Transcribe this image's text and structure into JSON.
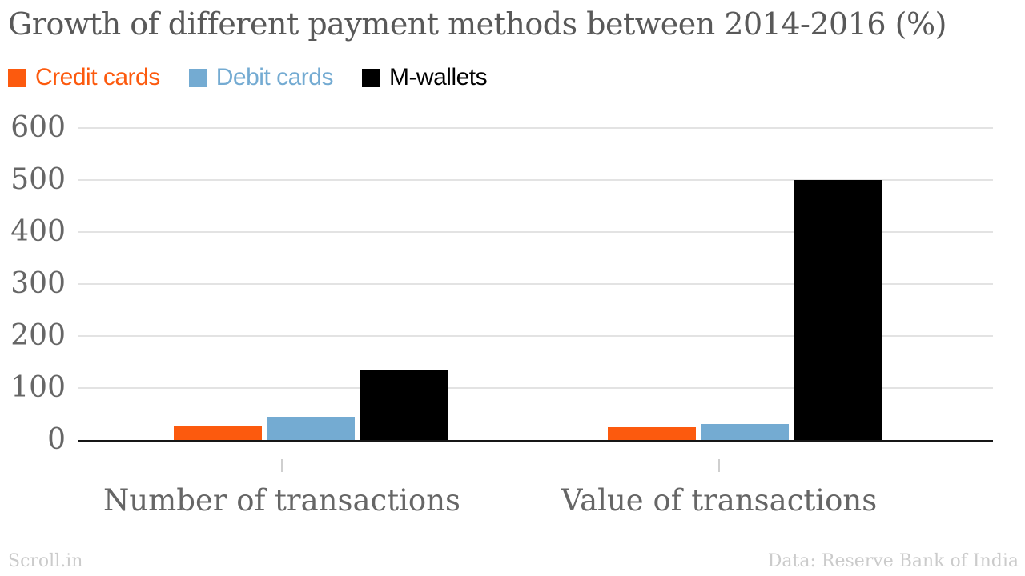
{
  "chart_data": {
    "type": "bar",
    "title": "Growth of different payment methods between 2014-2016 (%)",
    "categories": [
      "Number of transactions",
      "Value of transactions"
    ],
    "series": [
      {
        "name": "Credit cards",
        "color": "#fc5a0e",
        "values": [
          27,
          25
        ]
      },
      {
        "name": "Debit cards",
        "color": "#74abd2",
        "values": [
          45,
          30
        ]
      },
      {
        "name": "M-wallets",
        "color": "#000000",
        "values": [
          136,
          500
        ]
      }
    ],
    "ylim": [
      0,
      600
    ],
    "yticks": [
      0,
      100,
      200,
      300,
      400,
      500,
      600
    ],
    "xlabel": "",
    "ylabel": "",
    "grid": "horizontal",
    "legend_position": "top-left",
    "colors": {
      "title_text": "#595959",
      "axis_text": "#666666",
      "gridline": "#e3e3e3",
      "baseline": "#161616",
      "footer_text": "#cbcbcb"
    }
  },
  "footer": {
    "brand": "Scroll.in",
    "source": "Data: Reserve Bank of India"
  }
}
